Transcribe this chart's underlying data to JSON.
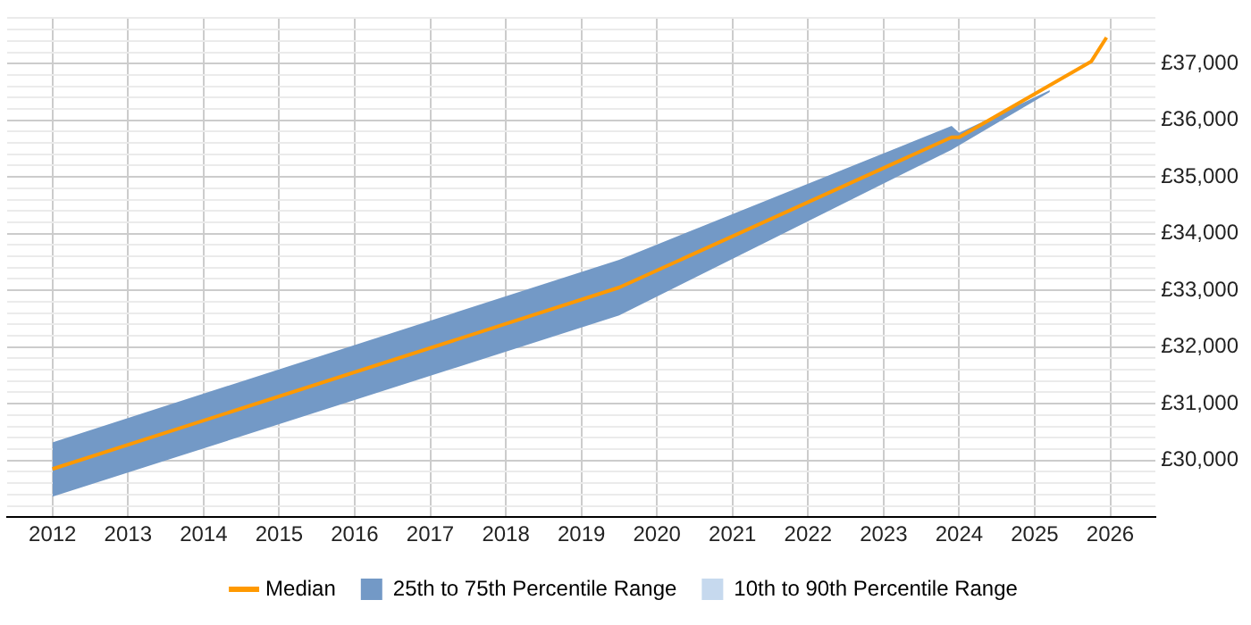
{
  "chart_data": {
    "type": "line",
    "xlim": [
      2011.4,
      2026.6
    ],
    "xticks": [
      2012,
      2013,
      2014,
      2015,
      2016,
      2017,
      2018,
      2019,
      2020,
      2021,
      2022,
      2023,
      2024,
      2025,
      2026
    ],
    "ylim": [
      29000,
      37800
    ],
    "yticks": [
      {
        "value": 29000,
        "label": null
      },
      {
        "value": 29200,
        "label": null
      },
      {
        "value": 29400,
        "label": null
      },
      {
        "value": 29600,
        "label": null
      },
      {
        "value": 29800,
        "label": null
      },
      {
        "value": 30000,
        "label": "£30,000"
      },
      {
        "value": 30200,
        "label": null
      },
      {
        "value": 30400,
        "label": null
      },
      {
        "value": 30600,
        "label": null
      },
      {
        "value": 30800,
        "label": null
      },
      {
        "value": 31000,
        "label": "£31,000"
      },
      {
        "value": 31200,
        "label": null
      },
      {
        "value": 31400,
        "label": null
      },
      {
        "value": 31600,
        "label": null
      },
      {
        "value": 31800,
        "label": null
      },
      {
        "value": 32000,
        "label": "£32,000"
      },
      {
        "value": 32200,
        "label": null
      },
      {
        "value": 32400,
        "label": null
      },
      {
        "value": 32600,
        "label": null
      },
      {
        "value": 32800,
        "label": null
      },
      {
        "value": 33000,
        "label": "£33,000"
      },
      {
        "value": 33200,
        "label": null
      },
      {
        "value": 33400,
        "label": null
      },
      {
        "value": 33600,
        "label": null
      },
      {
        "value": 33800,
        "label": null
      },
      {
        "value": 34000,
        "label": "£34,000"
      },
      {
        "value": 34200,
        "label": null
      },
      {
        "value": 34400,
        "label": null
      },
      {
        "value": 34600,
        "label": null
      },
      {
        "value": 34800,
        "label": null
      },
      {
        "value": 35000,
        "label": "£35,000"
      },
      {
        "value": 35200,
        "label": null
      },
      {
        "value": 35400,
        "label": null
      },
      {
        "value": 35600,
        "label": null
      },
      {
        "value": 35800,
        "label": null
      },
      {
        "value": 36000,
        "label": "£36,000"
      },
      {
        "value": 36200,
        "label": null
      },
      {
        "value": 36400,
        "label": null
      },
      {
        "value": 36600,
        "label": null
      },
      {
        "value": 36800,
        "label": null
      },
      {
        "value": 37000,
        "label": "£37,000"
      },
      {
        "value": 37200,
        "label": null
      },
      {
        "value": 37400,
        "label": null
      },
      {
        "value": 37600,
        "label": null
      },
      {
        "value": 37800,
        "label": null
      }
    ],
    "grid": true,
    "legend": "bottom",
    "series": [
      {
        "name": "Median",
        "color": "#ff9900",
        "x": [
          2012,
          2019.5,
          2023.9,
          2024,
          2025.75,
          2025.95
        ],
        "values": [
          29850,
          33050,
          35700,
          35700,
          37040,
          37460
        ]
      },
      {
        "name": "25th to 75th Percentile Range",
        "type": "area",
        "color": "#7399c6",
        "x": [
          2012,
          2019.5,
          2023.9,
          2024,
          2025.2
        ],
        "values": [
          null,
          null,
          null,
          null,
          null
        ],
        "lower": [
          29360,
          32560,
          35480,
          35560,
          36500
        ],
        "upper": [
          30320,
          33540,
          35900,
          35780,
          36530
        ]
      },
      {
        "name": "10th to 90th Percentile Range",
        "type": "area",
        "color": "#c6d9ee"
      }
    ]
  }
}
